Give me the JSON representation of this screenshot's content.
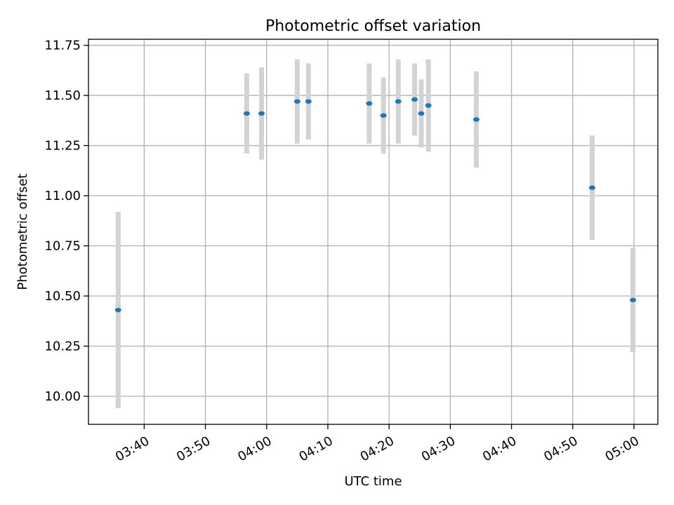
{
  "chart_data": {
    "type": "scatter",
    "title": "Photometric offset variation",
    "xlabel": "UTC time",
    "ylabel": "Photometric offset",
    "x_tick_labels": [
      "03:40",
      "03:50",
      "04:00",
      "04:10",
      "04:20",
      "04:30",
      "04:40",
      "04:50",
      "05:00"
    ],
    "x_ticks_min": [
      220,
      230,
      240,
      250,
      260,
      270,
      280,
      290,
      300
    ],
    "xlim_min": [
      210.9,
      303.9
    ],
    "y_tick_labels": [
      "10.00",
      "10.25",
      "10.50",
      "10.75",
      "11.00",
      "11.25",
      "11.50",
      "11.75"
    ],
    "y_ticks": [
      10.0,
      10.25,
      10.5,
      10.75,
      11.0,
      11.25,
      11.5,
      11.75
    ],
    "ylim": [
      9.86,
      11.78
    ],
    "grid": true,
    "colors": {
      "point": "#1f77b4",
      "errorbar": "#d3d3d3",
      "grid": "#b0b0b0"
    },
    "points": [
      {
        "time": "03:35:45",
        "t_min": 215.75,
        "y": 10.43,
        "yerr": 0.49
      },
      {
        "time": "03:56:45",
        "t_min": 236.75,
        "y": 11.41,
        "yerr": 0.2
      },
      {
        "time": "03:59:10",
        "t_min": 239.17,
        "y": 11.41,
        "yerr": 0.23
      },
      {
        "time": "04:05:00",
        "t_min": 245.0,
        "y": 11.47,
        "yerr": 0.21
      },
      {
        "time": "04:06:50",
        "t_min": 246.83,
        "y": 11.47,
        "yerr": 0.19
      },
      {
        "time": "04:16:45",
        "t_min": 256.75,
        "y": 11.46,
        "yerr": 0.2
      },
      {
        "time": "04:19:05",
        "t_min": 259.08,
        "y": 11.4,
        "yerr": 0.19
      },
      {
        "time": "04:21:30",
        "t_min": 261.5,
        "y": 11.47,
        "yerr": 0.21
      },
      {
        "time": "04:24:10",
        "t_min": 264.17,
        "y": 11.48,
        "yerr": 0.18
      },
      {
        "time": "04:25:15",
        "t_min": 265.25,
        "y": 11.41,
        "yerr": 0.17
      },
      {
        "time": "04:26:25",
        "t_min": 266.42,
        "y": 11.45,
        "yerr": 0.23
      },
      {
        "time": "04:34:15",
        "t_min": 274.25,
        "y": 11.38,
        "yerr": 0.24
      },
      {
        "time": "04:53:10",
        "t_min": 293.17,
        "y": 11.04,
        "yerr": 0.26
      },
      {
        "time": "04:59:50",
        "t_min": 299.83,
        "y": 10.48,
        "yerr": 0.26
      }
    ]
  }
}
